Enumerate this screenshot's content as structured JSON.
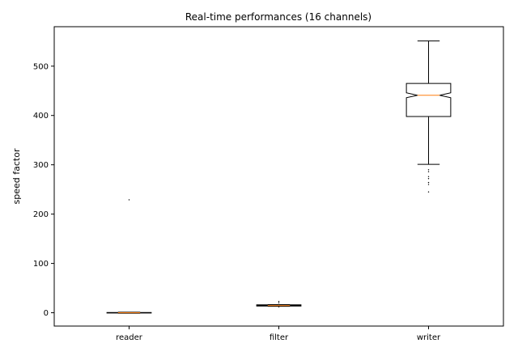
{
  "chart_data": {
    "type": "box",
    "title": "Real-time performances (16 channels)",
    "xlabel": "",
    "ylabel": "speed factor",
    "ylim": [
      -27,
      580
    ],
    "yticks": [
      0,
      100,
      200,
      300,
      400,
      500
    ],
    "notched": true,
    "grid": false,
    "colors": {
      "box_edge": "#000000",
      "median": "#ff7f0e",
      "whisker": "#000000",
      "flier": "#000000",
      "frame": "#000000"
    },
    "categories": [
      "reader",
      "filter",
      "writer"
    ],
    "boxes": [
      {
        "label": "reader",
        "whislo": -1,
        "q1": -0.5,
        "med": 0,
        "q3": 0.5,
        "whishi": 1,
        "notch_lo": -0.3,
        "notch_hi": 0.3,
        "fliers": [
          229
        ]
      },
      {
        "label": "filter",
        "whislo": 13,
        "q1": 13.5,
        "med": 14.5,
        "q3": 16,
        "whishi": 16.5,
        "notch_lo": 14,
        "notch_hi": 15,
        "fliers": [
          12,
          20,
          23
        ]
      },
      {
        "label": "writer",
        "whislo": 301,
        "q1": 398,
        "med": 441,
        "q3": 465,
        "whishi": 551,
        "notch_lo": 436,
        "notch_hi": 446,
        "fliers": [
          245,
          260,
          264,
          272,
          276,
          286,
          290
        ]
      }
    ]
  }
}
